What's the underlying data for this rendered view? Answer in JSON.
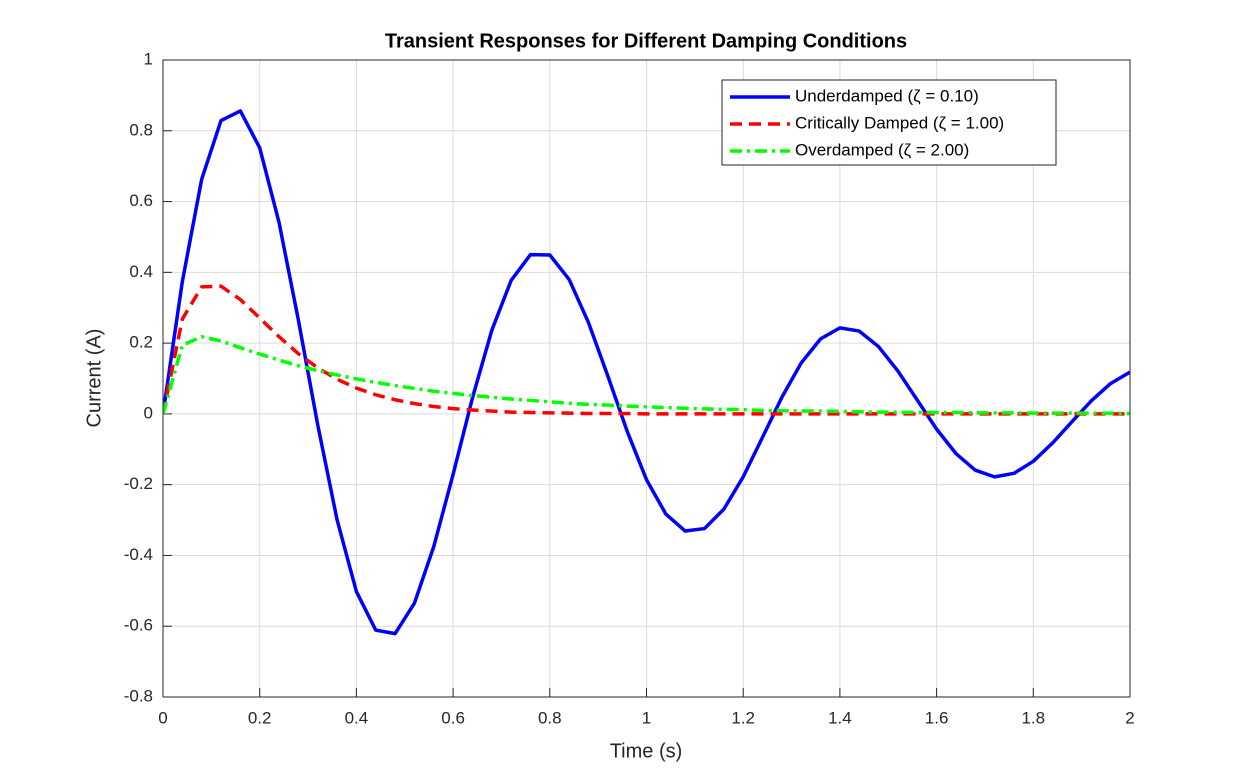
{
  "chart_data": {
    "type": "line",
    "title": "Transient Responses for Different Damping Conditions",
    "x_label": "Time (s)",
    "y_label": "Current (A)",
    "x": [
      0,
      0.04,
      0.08,
      0.12,
      0.16,
      0.2,
      0.24,
      0.28,
      0.32,
      0.36,
      0.4,
      0.44,
      0.48,
      0.52,
      0.56,
      0.6,
      0.64,
      0.68,
      0.72,
      0.76,
      0.8,
      0.84,
      0.88,
      0.92,
      0.96,
      1,
      1.04,
      1.08,
      1.12,
      1.16,
      1.2,
      1.24,
      1.28,
      1.32,
      1.36,
      1.4,
      1.44,
      1.48,
      1.52,
      1.56,
      1.6,
      1.64,
      1.68,
      1.72,
      1.76,
      1.8,
      1.84,
      1.88,
      1.92,
      1.96,
      2
    ],
    "series": [
      {
        "name": "Underdamped (ζ = 0.10)",
        "color": "#0000ff",
        "style": "solid",
        "values": [
          0,
          0.374,
          0.663,
          0.829,
          0.856,
          0.752,
          0.541,
          0.265,
          -0.031,
          -0.299,
          -0.502,
          -0.611,
          -0.621,
          -0.535,
          -0.375,
          -0.171,
          0.045,
          0.236,
          0.377,
          0.45,
          0.449,
          0.38,
          0.258,
          0.107,
          -0.049,
          -0.186,
          -0.283,
          -0.331,
          -0.324,
          -0.269,
          -0.178,
          -0.066,
          0.047,
          0.144,
          0.212,
          0.243,
          0.234,
          0.19,
          0.121,
          0.039,
          -0.043,
          -0.112,
          -0.159,
          -0.178,
          -0.168,
          -0.134,
          -0.082,
          -0.022,
          0.037,
          0.086,
          0.118
        ]
      },
      {
        "name": "Critically Damped (ζ = 1.00)",
        "color": "#ff0000",
        "style": "dashed",
        "values": [
          0,
          0.268,
          0.359,
          0.361,
          0.323,
          0.271,
          0.218,
          0.17,
          0.13,
          0.098,
          0.073,
          0.054,
          0.04,
          0.029,
          0.021,
          0.015,
          0.011,
          0.008,
          0.005,
          0.004,
          0.003,
          0.002,
          0.001,
          0.001,
          0.001,
          0,
          0,
          0,
          0,
          0,
          0,
          0,
          0,
          0,
          0,
          0,
          0,
          0,
          0,
          0,
          0,
          0,
          0,
          0,
          0,
          0,
          0,
          0,
          0,
          0,
          0
        ]
      },
      {
        "name": "Overdamped (ζ = 2.00)",
        "color": "#00ff00",
        "style": "dashdot",
        "values": [
          0,
          0.194,
          0.218,
          0.206,
          0.187,
          0.169,
          0.152,
          0.136,
          0.122,
          0.11,
          0.099,
          0.089,
          0.08,
          0.072,
          0.064,
          0.058,
          0.052,
          0.047,
          0.042,
          0.038,
          0.034,
          0.03,
          0.027,
          0.025,
          0.022,
          0.02,
          0.018,
          0.016,
          0.014,
          0.013,
          0.012,
          0.01,
          0.009,
          0.008,
          0.008,
          0.007,
          0.006,
          0.005,
          0.005,
          0.004,
          0.004,
          0.004,
          0.003,
          0.003,
          0.003,
          0.002,
          0.002,
          0.002,
          0.002,
          0.002,
          0.001
        ]
      }
    ],
    "xlim": [
      0,
      2
    ],
    "xticks": [
      0,
      0.2,
      0.4,
      0.6,
      0.8,
      1,
      1.2,
      1.4,
      1.6,
      1.8,
      2
    ],
    "ylim": [
      -0.8,
      1
    ],
    "yticks": [
      -0.8,
      -0.6,
      -0.4,
      -0.2,
      0,
      0.2,
      0.4,
      0.6,
      0.8,
      1
    ],
    "grid": true,
    "legend": "northeast"
  }
}
